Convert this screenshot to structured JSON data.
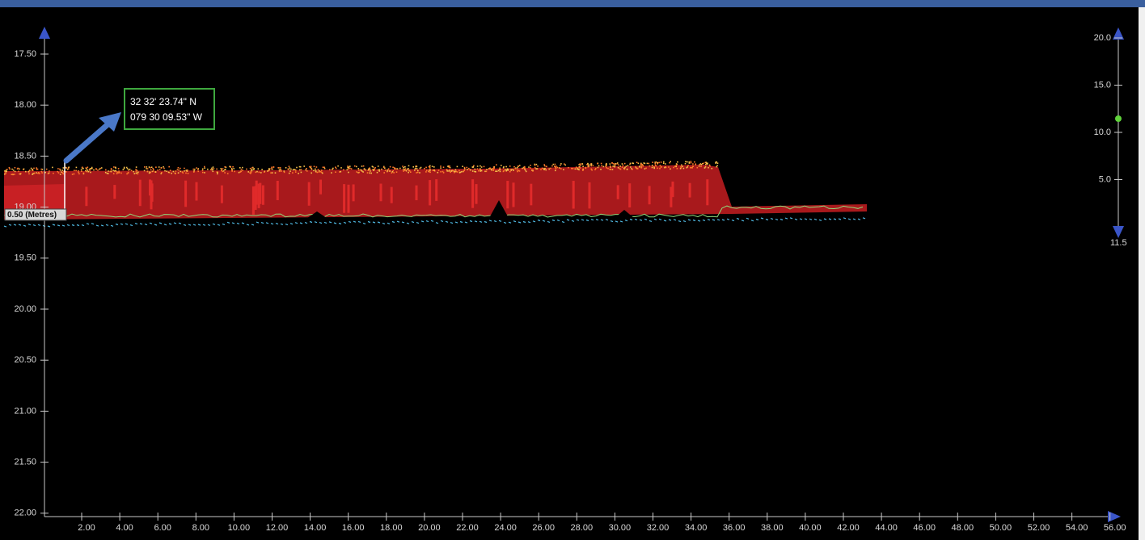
{
  "left_axis": {
    "ticks": [
      "17.50",
      "18.00",
      "18.50",
      "19.00",
      "19.50",
      "20.00",
      "20.50",
      "21.00",
      "21.50",
      "22.00"
    ]
  },
  "bottom_axis": {
    "ticks": [
      "2.00",
      "4.00",
      "6.00",
      "8.00",
      "10.00",
      "12.00",
      "14.00",
      "16.00",
      "18.00",
      "20.00",
      "22.00",
      "24.00",
      "26.00",
      "28.00",
      "30.00",
      "32.00",
      "34.00",
      "36.00",
      "38.00",
      "40.00",
      "42.00",
      "44.00",
      "46.00",
      "48.00",
      "50.00",
      "52.00",
      "54.00",
      "56.00"
    ]
  },
  "right_axis": {
    "ticks": [
      "20.0",
      "15.0",
      "10.0",
      "5.0"
    ],
    "bottom_label": "11.5"
  },
  "scale_label": "0.50 (Metres)",
  "position_box": {
    "latitude": "32 32' 23.74\" N",
    "longitude": "079 30 09.53\" W"
  }
}
